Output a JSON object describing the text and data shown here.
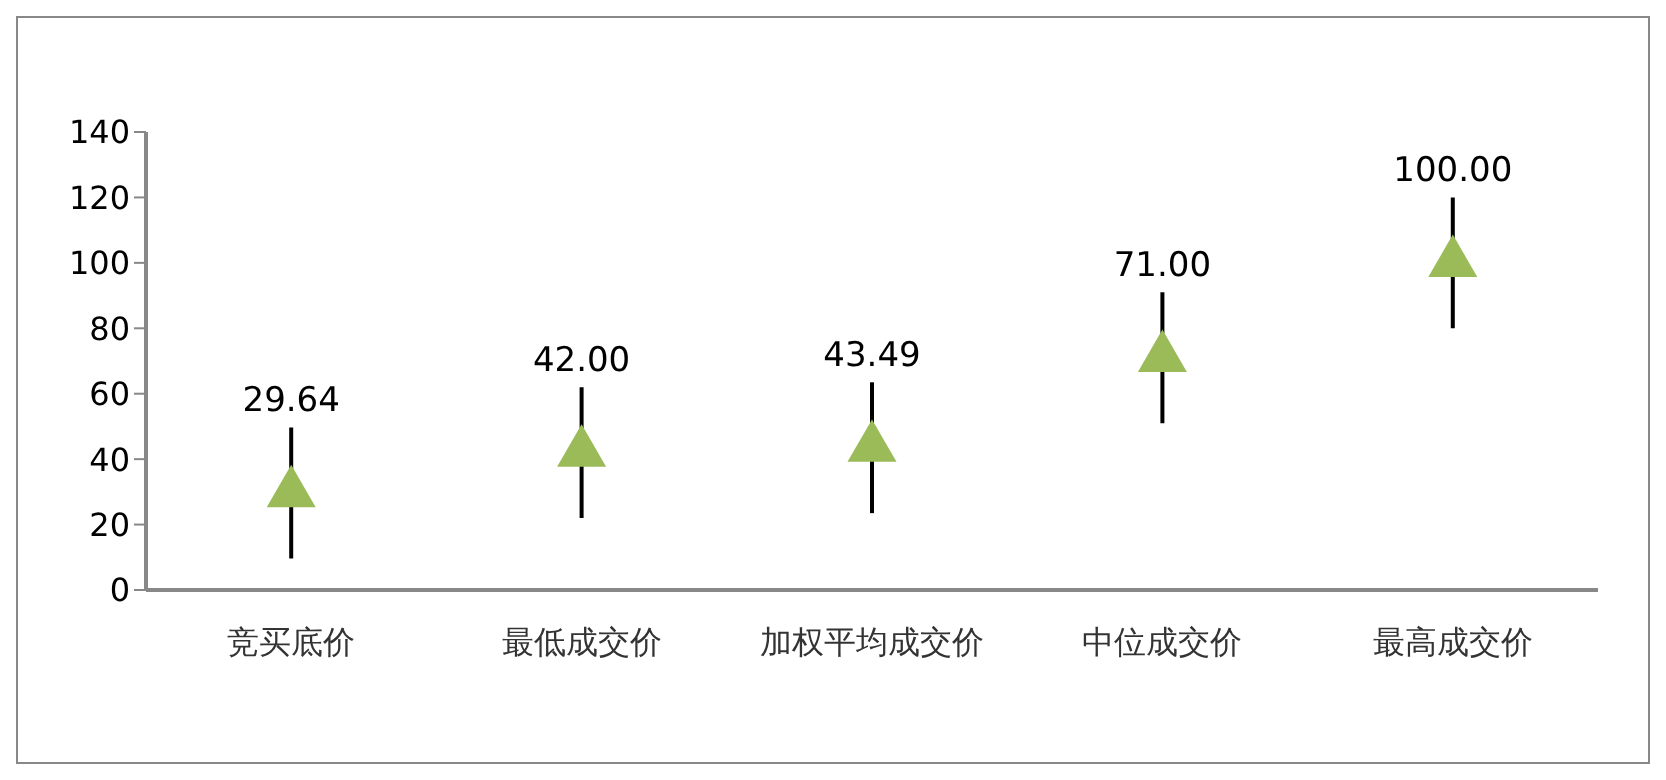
{
  "chart_data": {
    "type": "scatter",
    "categories": [
      "竞买底价",
      "最低成交价",
      "加权平均成交价",
      "中位成交价",
      "最高成交价"
    ],
    "values": [
      29.64,
      42.0,
      43.49,
      71.0,
      100.0
    ],
    "errors": [
      20,
      20,
      20,
      20,
      20
    ],
    "value_labels": [
      "29.64",
      "42.00",
      "43.49",
      "71.00",
      "100.00"
    ],
    "color": "#9bbb59",
    "marker": "triangle",
    "ylim": [
      0,
      140
    ],
    "yticks": [
      0,
      20,
      40,
      60,
      80,
      100,
      120,
      140
    ],
    "grid": false
  }
}
